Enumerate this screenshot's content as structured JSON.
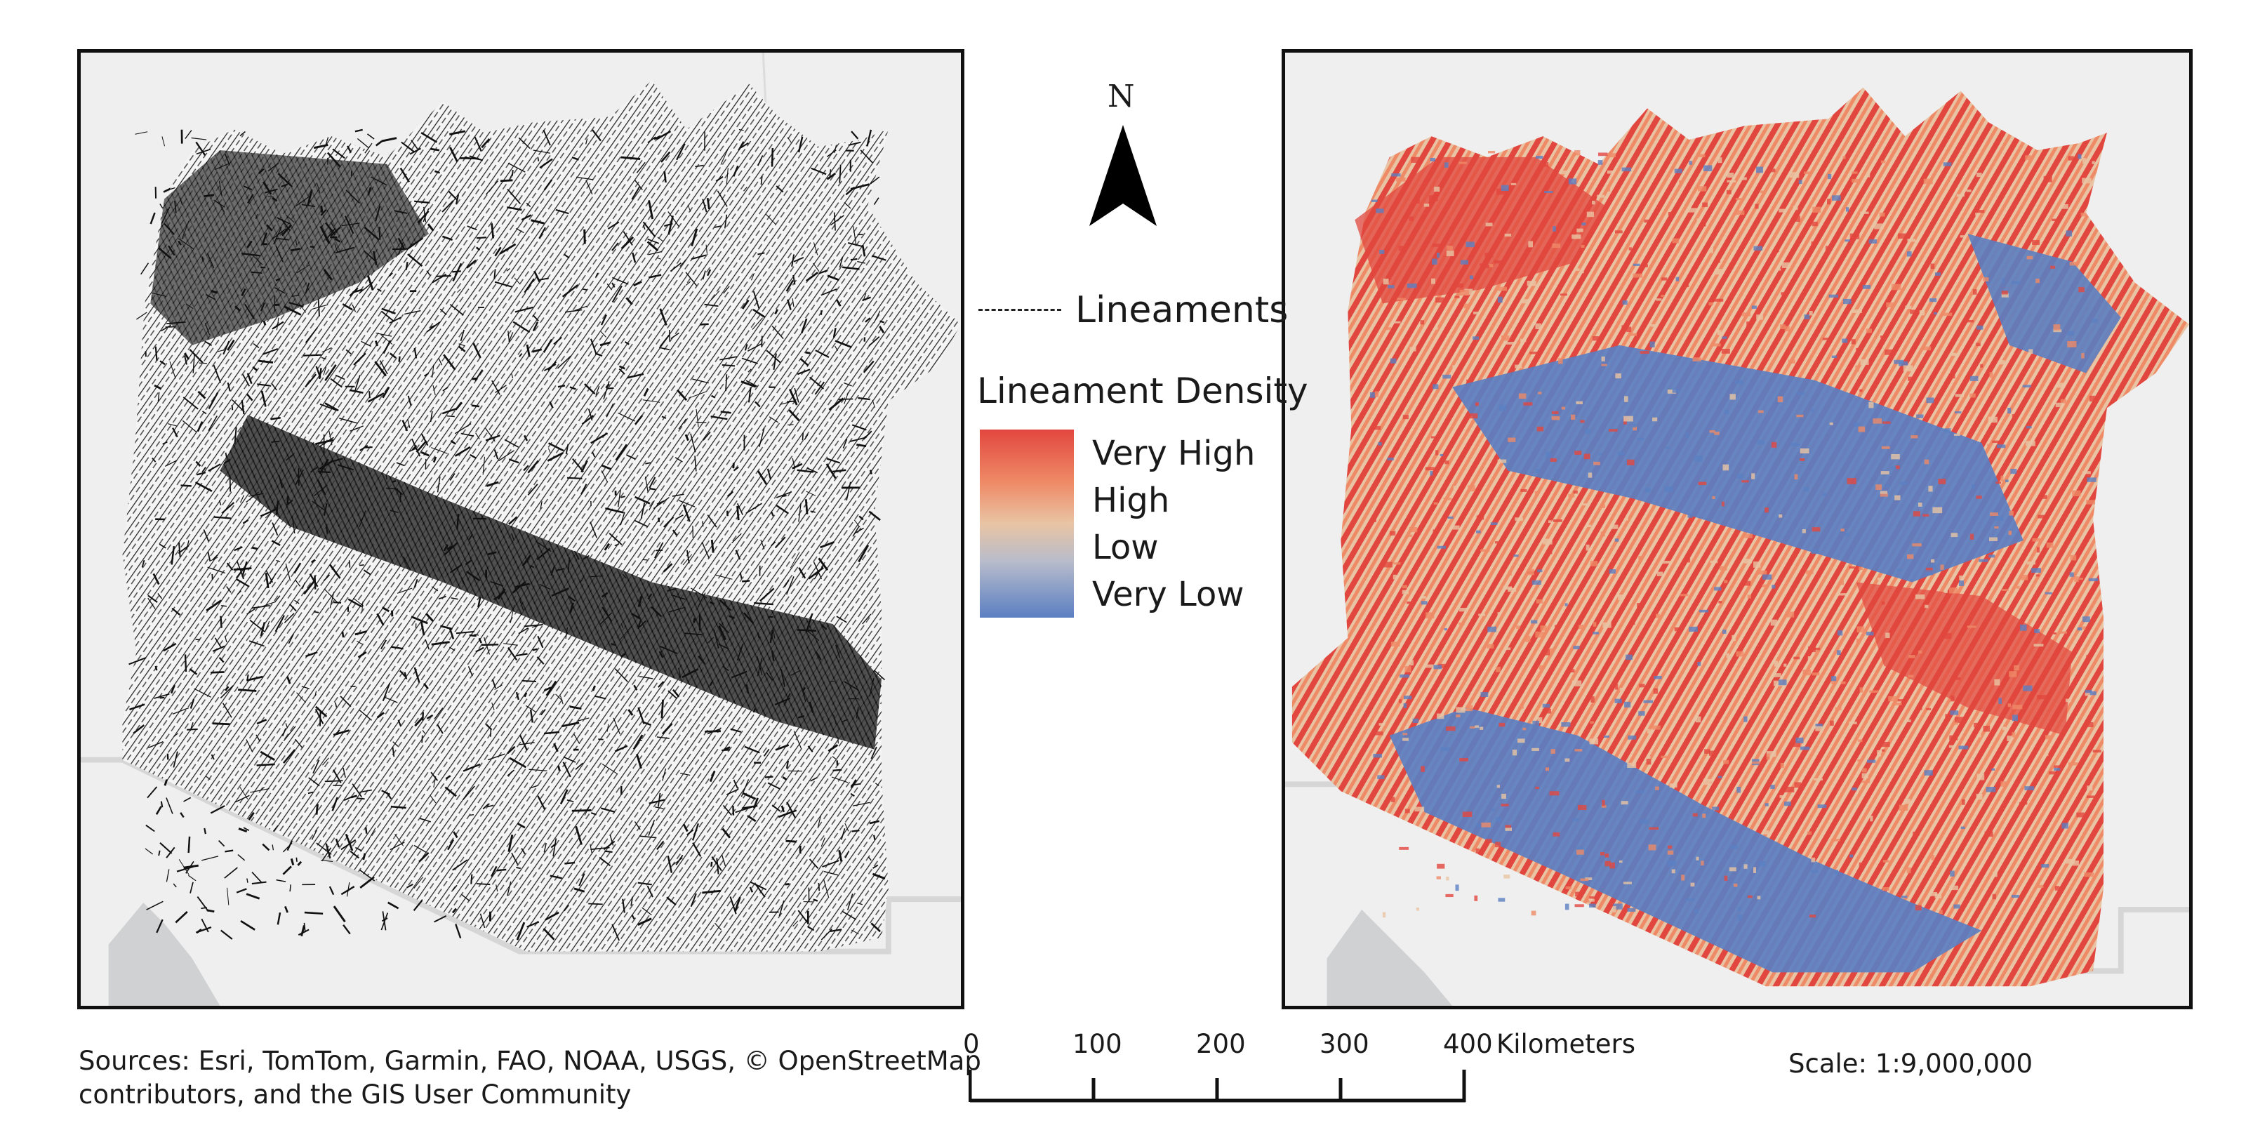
{
  "left_map": {
    "name": "lineaments-map",
    "layer": "Lineaments"
  },
  "right_map": {
    "name": "lineament-density-map",
    "layer": "Lineament Density"
  },
  "north_arrow": {
    "letter": "N"
  },
  "legend": {
    "lineaments_label": "Lineaments",
    "density_title": "Lineament Density",
    "classes": [
      "Very High",
      "High",
      "Low",
      "Very Low"
    ],
    "ramp_colors": [
      "#e2473f",
      "#ef8a66",
      "#e9c4a4",
      "#b8bccb",
      "#5b7fc2"
    ]
  },
  "colors": {
    "very_high": "#e2473f",
    "high": "#ef8a66",
    "low": "#e9c4a4",
    "very_low": "#5b7fc2",
    "lineament": "#111111",
    "basemap_land": "#efefef",
    "basemap_water": "#cfd1d2"
  },
  "sources": {
    "line1": "Sources: Esri, TomTom, Garmin, FAO, NOAA, USGS, © OpenStreetMap",
    "line2": "contributors, and the GIS User Community"
  },
  "scale_bar": {
    "ticks": [
      "0",
      "100",
      "200",
      "300",
      "400"
    ],
    "unit": "Kilometers"
  },
  "scale_text": "Scale: 1:9,000,000"
}
